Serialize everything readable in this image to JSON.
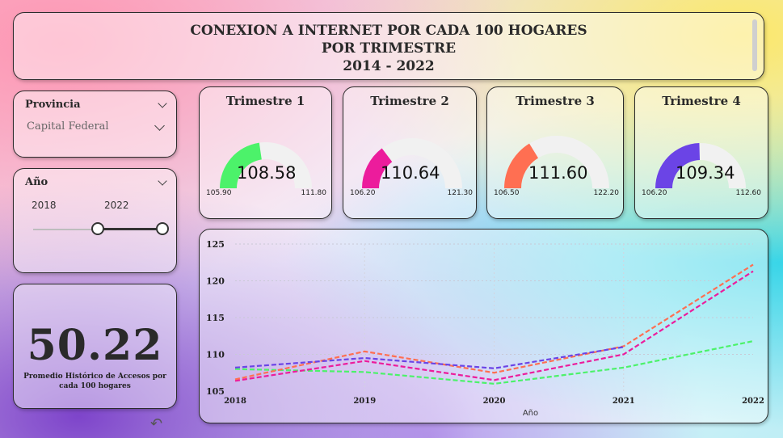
{
  "header": {
    "title_line1": "CONEXION A INTERNET POR CADA 100 HOGARES",
    "title_line2": "POR TRIMESTRE",
    "title_line3": "2014 - 2022"
  },
  "filters": {
    "provincia": {
      "label": "Provincia",
      "selected": "Capital Federal"
    },
    "anio": {
      "label": "Año",
      "from": "2018",
      "to": "2022",
      "min_year": 2014,
      "max_year": 2022,
      "from_value": 2018,
      "to_value": 2022
    }
  },
  "kpi": {
    "value": "50.22",
    "label": "Promedio Histórico de Accesos por cada 100 hogares"
  },
  "gauges": [
    {
      "title": "Trimestre 1",
      "value": "108.58",
      "min": "105.90",
      "max": "111.80",
      "fraction": 0.454,
      "color": "#4cf26a"
    },
    {
      "title": "Trimestre 2",
      "value": "110.64",
      "min": "106.20",
      "max": "121.30",
      "fraction": 0.294,
      "color": "#ec1c9c"
    },
    {
      "title": "Trimestre 3",
      "value": "111.60",
      "min": "106.50",
      "max": "122.20",
      "fraction": 0.325,
      "color": "#ff6f52"
    },
    {
      "title": "Trimestre 4",
      "value": "109.34",
      "min": "106.20",
      "max": "112.60",
      "fraction": 0.491,
      "color": "#6b44e6"
    }
  ],
  "chart_data": {
    "type": "line",
    "x": [
      2018,
      2019,
      2020,
      2021,
      2022
    ],
    "x_ticks": [
      "2018",
      "2019",
      "2020",
      "2021",
      "2022"
    ],
    "y_ticks": [
      "105",
      "110",
      "115",
      "120",
      "125"
    ],
    "ylim": [
      105,
      125
    ],
    "xlabel": "Año",
    "ylabel": "",
    "grid": true,
    "series": [
      {
        "color": "#4cf26a",
        "values": [
          108.0,
          107.6,
          106.0,
          108.2,
          111.8
        ]
      },
      {
        "color": "#ec1c9c",
        "values": [
          106.4,
          109.1,
          106.5,
          110.0,
          121.3
        ]
      },
      {
        "color": "#ff6f52",
        "values": [
          106.6,
          110.4,
          107.5,
          111.1,
          122.2
        ]
      },
      {
        "color": "#6b44e6",
        "values": [
          108.2,
          109.5,
          108.1,
          111.0,
          null
        ]
      }
    ]
  }
}
